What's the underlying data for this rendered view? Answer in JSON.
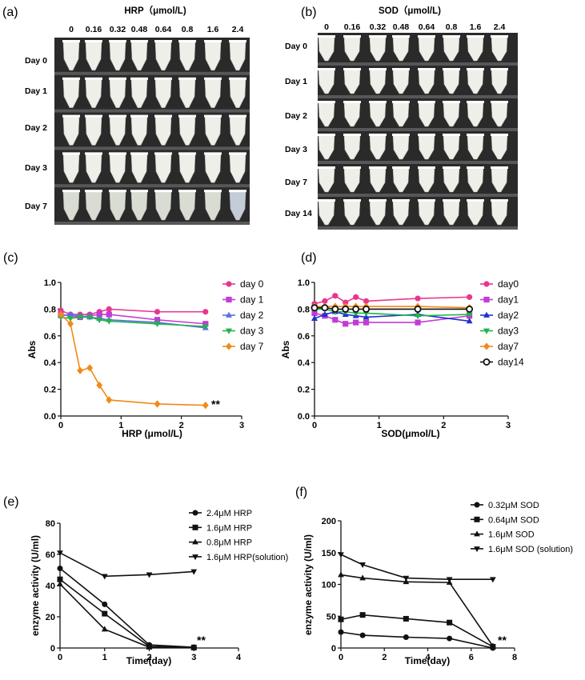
{
  "panels": {
    "a": {
      "label": "(a)",
      "title": "HRP（μmol/L)",
      "concentrations": [
        "0",
        "0.16",
        "0.32",
        "0.48",
        "0.64",
        "0.8",
        "1.6",
        "2.4"
      ],
      "rows": [
        "Day 0",
        "Day 1",
        "Day 2",
        "Day 3",
        "Day 7"
      ],
      "tube_colors": {
        "clear": "#efefea",
        "milky": "#d9dcd3",
        "faded_last": "#c4ccd8"
      }
    },
    "b": {
      "label": "(b)",
      "title": "SOD（μmol/L)",
      "concentrations": [
        "0",
        "0.16",
        "0.32",
        "0.48",
        "0.64",
        "0.8",
        "1.6",
        "2.4"
      ],
      "rows": [
        "Day 0",
        "Day 1",
        "Day 2",
        "Day 3",
        "Day 7",
        "Day 14"
      ]
    }
  },
  "chart_data": [
    {
      "panel": "(c)",
      "type": "line",
      "xlabel": "HRP (μmol/L)",
      "ylabel": "Abs",
      "xlim": [
        0,
        3
      ],
      "ylim": [
        0,
        1.0
      ],
      "xticks": [
        "0",
        "1",
        "2",
        "3"
      ],
      "yticks": [
        "0.0",
        "0.2",
        "0.4",
        "0.6",
        "0.8",
        "1.0"
      ],
      "x": [
        0,
        0.16,
        0.32,
        0.48,
        0.64,
        0.8,
        1.6,
        2.4
      ],
      "legend_position": "right",
      "annotation": "**",
      "series": [
        {
          "name": "day 0",
          "color": "#e8368f",
          "marker": "circle",
          "values": [
            0.79,
            0.76,
            0.76,
            0.76,
            0.78,
            0.8,
            0.78,
            0.78
          ]
        },
        {
          "name": "day 1",
          "color": "#c23bd4",
          "marker": "square",
          "values": [
            0.76,
            0.75,
            0.74,
            0.75,
            0.76,
            0.76,
            0.72,
            0.69
          ]
        },
        {
          "name": "day 2",
          "color": "#5b6fe0",
          "marker": "triangle",
          "values": [
            0.75,
            0.76,
            0.75,
            0.74,
            0.73,
            0.72,
            0.7,
            0.66
          ]
        },
        {
          "name": "day 3",
          "color": "#22b24c",
          "marker": "triangle-down",
          "values": [
            0.74,
            0.73,
            0.74,
            0.74,
            0.72,
            0.71,
            0.69,
            0.67
          ]
        },
        {
          "name": "day 7",
          "color": "#f08a1a",
          "marker": "diamond",
          "values": [
            0.76,
            0.69,
            0.34,
            0.36,
            0.23,
            0.12,
            0.09,
            0.08
          ]
        }
      ]
    },
    {
      "panel": "(d)",
      "type": "line",
      "xlabel": "SOD(μmol/L)",
      "ylabel": "Abs",
      "xlim": [
        0,
        3
      ],
      "ylim": [
        0,
        1.0
      ],
      "xticks": [
        "0",
        "1",
        "2",
        "3"
      ],
      "yticks": [
        "0.0",
        "0.2",
        "0.4",
        "0.6",
        "0.8",
        "1.0"
      ],
      "x": [
        0,
        0.16,
        0.32,
        0.48,
        0.64,
        0.8,
        1.6,
        2.4
      ],
      "legend_position": "right",
      "series": [
        {
          "name": "day0",
          "color": "#e8368f",
          "marker": "circle",
          "values": [
            0.84,
            0.86,
            0.9,
            0.85,
            0.89,
            0.86,
            0.88,
            0.89
          ]
        },
        {
          "name": "day1",
          "color": "#c23bd4",
          "marker": "square",
          "values": [
            0.77,
            0.75,
            0.72,
            0.69,
            0.7,
            0.7,
            0.7,
            0.75
          ]
        },
        {
          "name": "day2",
          "color": "#1f2fd0",
          "marker": "triangle",
          "values": [
            0.73,
            0.76,
            0.78,
            0.76,
            0.75,
            0.74,
            0.76,
            0.71
          ]
        },
        {
          "name": "day3",
          "color": "#22b24c",
          "marker": "triangle-down",
          "values": [
            0.8,
            0.8,
            0.78,
            0.78,
            0.77,
            0.77,
            0.75,
            0.76
          ]
        },
        {
          "name": "day7",
          "color": "#f08a1a",
          "marker": "diamond",
          "values": [
            0.82,
            0.82,
            0.82,
            0.82,
            0.82,
            0.82,
            0.82,
            0.81
          ]
        },
        {
          "name": "day14",
          "color": "#111111",
          "marker": "open-circle",
          "values": [
            0.81,
            0.81,
            0.8,
            0.8,
            0.8,
            0.8,
            0.8,
            0.8
          ]
        }
      ]
    },
    {
      "panel": "(e)",
      "type": "line",
      "xlabel": "Time(day)",
      "ylabel": "enzyme activity (U/ml)",
      "xlim": [
        0,
        4
      ],
      "ylim": [
        0,
        80
      ],
      "xticks": [
        "0",
        "1",
        "2",
        "3",
        "4"
      ],
      "yticks": [
        "0",
        "20",
        "40",
        "60",
        "80"
      ],
      "legend_position": "top-right",
      "annotation": "**",
      "series": [
        {
          "name": "2.4μM HRP",
          "color": "#111111",
          "marker": "circle",
          "x": [
            0,
            1,
            2,
            3
          ],
          "values": [
            51,
            28,
            2,
            0.5
          ]
        },
        {
          "name": "1.6μM HRP",
          "color": "#111111",
          "marker": "square",
          "x": [
            0,
            1,
            2,
            3
          ],
          "values": [
            44,
            22,
            1,
            0.3
          ]
        },
        {
          "name": "0.8μM HRP",
          "color": "#111111",
          "marker": "triangle",
          "x": [
            0,
            1,
            2,
            3
          ],
          "values": [
            41,
            12,
            0.5,
            0.2
          ]
        },
        {
          "name": "1.6μM HRP(solution)",
          "color": "#111111",
          "marker": "triangle-down",
          "x": [
            0,
            1,
            2,
            3
          ],
          "values": [
            61,
            46,
            47,
            49
          ]
        }
      ]
    },
    {
      "panel": "(f)",
      "type": "line",
      "xlabel": "Time(day)",
      "ylabel": "enzyme activity (U/ml)",
      "xlim": [
        0,
        8
      ],
      "ylim": [
        0,
        200
      ],
      "xticks": [
        "0",
        "2",
        "4",
        "6",
        "8"
      ],
      "yticks": [
        "0",
        "50",
        "100",
        "150",
        "200"
      ],
      "legend_position": "top-right",
      "annotation": "**",
      "series": [
        {
          "name": "0.32μM SOD",
          "color": "#111111",
          "marker": "circle",
          "x": [
            0,
            1,
            3,
            5,
            7
          ],
          "values": [
            25,
            20,
            17,
            15,
            0
          ]
        },
        {
          "name": "0.64μM SOD",
          "color": "#111111",
          "marker": "square",
          "x": [
            0,
            1,
            3,
            5,
            7
          ],
          "values": [
            45,
            52,
            46,
            40,
            2
          ]
        },
        {
          "name": "1.6μM SOD",
          "color": "#111111",
          "marker": "triangle",
          "x": [
            0,
            1,
            3,
            5,
            7
          ],
          "values": [
            115,
            110,
            104,
            103,
            3
          ]
        },
        {
          "name": "1.6μM SOD (solution)",
          "color": "#111111",
          "marker": "triangle-down",
          "x": [
            0,
            1,
            3,
            5,
            7
          ],
          "values": [
            147,
            131,
            110,
            108,
            108
          ]
        }
      ]
    }
  ]
}
